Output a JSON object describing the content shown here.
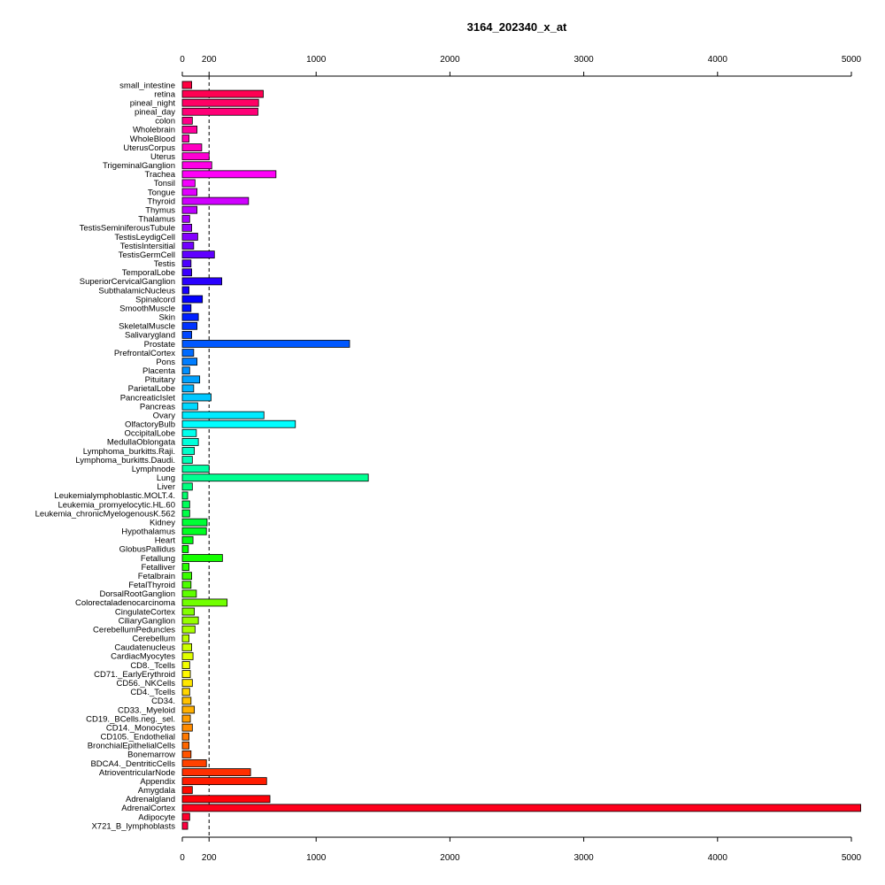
{
  "chart_data": {
    "type": "bar",
    "orientation": "horizontal",
    "title": "3164_202340_x_at",
    "xlabel": "",
    "ylabel": "",
    "xlim": [
      0,
      5000
    ],
    "x_ticks": [
      0,
      200,
      1000,
      2000,
      3000,
      4000,
      5000
    ],
    "x_tick_labels": [
      "0",
      "200",
      "1000",
      "2000",
      "3000",
      "4000",
      "5000"
    ],
    "axis_position": "top and bottom",
    "reference_line": 200,
    "grid": false,
    "legend": "none",
    "bar_fill": "rainbow gradient top-to-bottom",
    "categories": [
      "small_intestine",
      "retina",
      "pineal_night",
      "pineal_day",
      "colon",
      "Wholebrain",
      "WholeBlood",
      "UterusCorpus",
      "Uterus",
      "TrigeminalGanglion",
      "Trachea",
      "Tonsil",
      "Tongue",
      "Thyroid",
      "Thymus",
      "Thalamus",
      "TestisSeminiferousTubule",
      "TestisLeydigCell",
      "TestisIntersitial",
      "TestisGermCell",
      "Testis",
      "TemporalLobe",
      "SuperiorCervicalGanglion",
      "SubthalamicNucleus",
      "Spinalcord",
      "SmoothMuscle",
      "Skin",
      "SkeletalMuscle",
      "Salivarygland",
      "Prostate",
      "PrefrontalCortex",
      "Pons",
      "Placenta",
      "Pituitary",
      "ParietalLobe",
      "PancreaticIslet",
      "Pancreas",
      "Ovary",
      "OlfactoryBulb",
      "OccipitalLobe",
      "MedullaOblongata",
      "Lymphoma_burkitts.Raji.",
      "Lymphoma_burkitts.Daudi.",
      "Lymphnode",
      "Lung",
      "Liver",
      "Leukemialymphoblastic.MOLT.4.",
      "Leukemia_promyelocytic.HL.60",
      "Leukemia_chronicMyelogenousK.562",
      "Kidney",
      "Hypothalamus",
      "Heart",
      "GlobusPallidus",
      "Fetallung",
      "Fetalliver",
      "Fetalbrain",
      "FetalThyroid",
      "DorsalRootGanglion",
      "Colorectaladenocarcinoma",
      "CingulateCortex",
      "CiliaryGanglion",
      "CerebellumPeduncles",
      "Cerebellum",
      "Caudatenucleus",
      "CardiacMyocytes",
      "CD8._Tcells",
      "CD71._EarlyErythroid",
      "CD56._NKCells",
      "CD4._Tcells",
      "CD34.",
      "CD33._Myeloid",
      "CD19._BCells.neg._sel.",
      "CD14._Monocytes",
      "CD105._Endothelial",
      "BronchialEpithelialCells",
      "Bonemarrow",
      "BDCA4._DentriticCells",
      "AtrioventricularNode",
      "Appendix",
      "Amygdala",
      "Adrenalgland",
      "AdrenalCortex",
      "Adipocyte",
      "X721_B_lymphoblasts"
    ],
    "values": [
      70,
      605,
      570,
      565,
      75,
      110,
      50,
      145,
      200,
      220,
      700,
      95,
      110,
      495,
      110,
      55,
      70,
      115,
      85,
      240,
      65,
      70,
      295,
      50,
      150,
      65,
      120,
      110,
      70,
      1250,
      85,
      110,
      55,
      130,
      85,
      215,
      115,
      610,
      845,
      105,
      120,
      90,
      75,
      200,
      1390,
      75,
      40,
      55,
      55,
      185,
      180,
      80,
      45,
      300,
      50,
      70,
      65,
      105,
      335,
      90,
      120,
      95,
      50,
      70,
      80,
      55,
      60,
      75,
      55,
      65,
      90,
      60,
      75,
      50,
      50,
      65,
      180,
      510,
      630,
      75,
      655,
      5070,
      55,
      40
    ]
  }
}
